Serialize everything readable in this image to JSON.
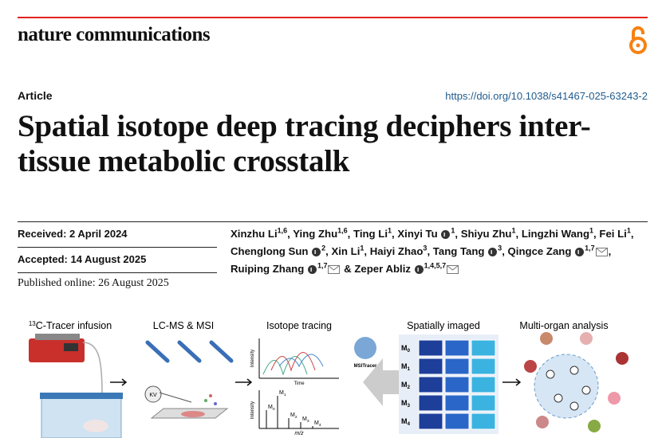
{
  "header": {
    "journal": "nature communications"
  },
  "article": {
    "type": "Article",
    "doi": "https://doi.org/10.1038/s41467-025-63243-2",
    "title_lines": [
      "Spatial isotope deep tracing deciphers inter-",
      "tissue metabolic crosstalk"
    ]
  },
  "dates": [
    "Received: 2 April 2024",
    "Accepted: 14 August 2025",
    "Published online: 26 August 2025"
  ],
  "authors": [
    {
      "name": "Xinzhu Li",
      "affiliations": "1,6",
      "after": ","
    },
    {
      "name": "Ying Zhu",
      "affiliations": "1,6",
      "after": ","
    },
    {
      "name": "Ting Li",
      "affiliations": "1",
      "after": ","
    },
    {
      "name": "Xinyi Tu",
      "affiliations": "1",
      "orcid": true,
      "after": ","
    },
    {
      "name": "Shiyu Zhu",
      "affiliations": "1",
      "after": ","
    },
    {
      "name": "Lingzhi Wang",
      "affiliations": "1",
      "after": ","
    },
    {
      "name": "Fei Li",
      "affiliations": "1",
      "after": ","
    },
    {
      "name": "Chenglong Sun",
      "affiliations": "2",
      "orcid": true,
      "after": ","
    },
    {
      "name": "Xin Li",
      "affiliations": "1",
      "after": ","
    },
    {
      "name": "Haiyi Zhao",
      "affiliations": "3",
      "after": ","
    },
    {
      "name": "Tang Tang",
      "affiliations": "3",
      "orcid": true,
      "after": ","
    },
    {
      "name": "Qingce Zang",
      "affiliations": "1,7",
      "orcid": true,
      "mail": true,
      "after": ","
    },
    {
      "name": "Ruiping Zhang",
      "affiliations": "1,7",
      "orcid": true,
      "mail": true
    },
    {
      "before": "&",
      "name": "Zeper Abliz",
      "affiliations": "1,4,5,7",
      "orcid": true,
      "mail": true
    }
  ],
  "figure": {
    "panel_titles": [
      {
        "sup": "13",
        "text": "C-Tracer infusion"
      },
      {
        "text": "LC-MS & MSI"
      },
      {
        "text": "Isotope tracing"
      },
      {
        "text": "Spatially imaged"
      },
      {
        "text": "Multi-organ analysis"
      }
    ],
    "small_labels": {
      "kv": "KV",
      "intensity": "Intensity",
      "time": "Time",
      "mz": "m/z",
      "software": "MSITracer"
    },
    "peak_labels": [
      {
        "base": "M",
        "sub": "0"
      },
      {
        "base": "M",
        "sub": "1"
      },
      {
        "base": "M",
        "sub": "2"
      },
      {
        "base": "M",
        "sub": "3"
      },
      {
        "base": "M",
        "sub": "4"
      }
    ],
    "row_labels": [
      {
        "base": "M",
        "sub": "0"
      },
      {
        "base": "M",
        "sub": "1"
      },
      {
        "base": "M",
        "sub": "2"
      },
      {
        "base": "M",
        "sub": "3"
      },
      {
        "base": "M",
        "sub": "4"
      }
    ]
  }
}
